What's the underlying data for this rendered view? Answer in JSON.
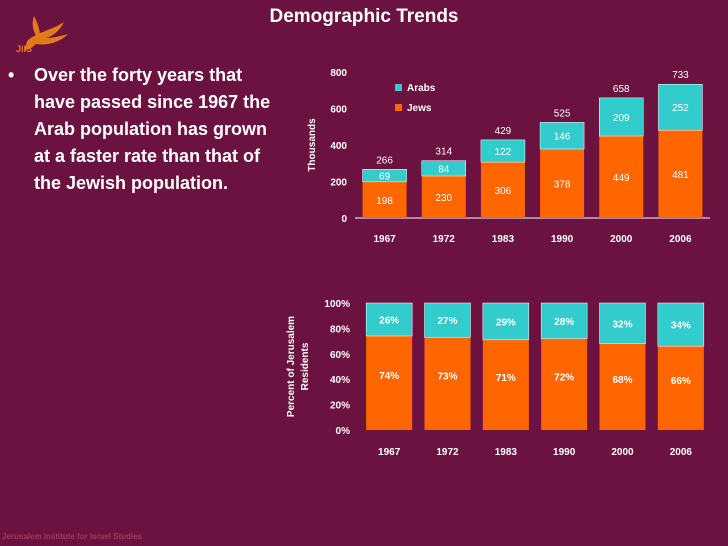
{
  "title": "Demographic Trends",
  "logo": {
    "text": "JIIS",
    "icon": "dove-icon",
    "color": "#e07a1a"
  },
  "bullet": {
    "marker": "•",
    "text": "Over the forty years that have passed since 1967 the Arab population has grown at a faster rate than that of the Jewish population."
  },
  "footer": "Jerusalem Institute for Israel Studies",
  "colors": {
    "background": "#6b1240",
    "arabs": "#33cccc",
    "jews": "#ff6600"
  },
  "chart_data": [
    {
      "type": "bar",
      "stacked": true,
      "categories": [
        "1967",
        "1972",
        "1983",
        "1990",
        "2000",
        "2006"
      ],
      "series": [
        {
          "name": "Jews",
          "values": [
            198,
            230,
            306,
            378,
            449,
            481
          ],
          "color": "#ff6600"
        },
        {
          "name": "Arabs",
          "values": [
            69,
            84,
            122,
            146,
            209,
            252
          ],
          "color": "#33cccc"
        }
      ],
      "totals": [
        266,
        314,
        429,
        525,
        658,
        733
      ],
      "ylabel": "Thousands",
      "ylim": [
        0,
        800
      ],
      "yticks": [
        0,
        200,
        400,
        600,
        800
      ],
      "ytick_labels": [
        "0",
        "200",
        "400",
        "600",
        "800"
      ],
      "legend": [
        "Arabs",
        "Jews"
      ],
      "legend_position": "top-left"
    },
    {
      "type": "bar",
      "stacked": true,
      "percent": true,
      "categories": [
        "1967",
        "1972",
        "1983",
        "1990",
        "2000",
        "2006"
      ],
      "series": [
        {
          "name": "Jews",
          "values": [
            74,
            73,
            71,
            72,
            68,
            66
          ],
          "labels": [
            "74%",
            "73%",
            "71%",
            "72%",
            "68%",
            "66%"
          ],
          "color": "#ff6600"
        },
        {
          "name": "Arabs",
          "values": [
            26,
            27,
            29,
            28,
            32,
            34
          ],
          "labels": [
            "26%",
            "27%",
            "29%",
            "28%",
            "32%",
            "34%"
          ],
          "color": "#33cccc"
        }
      ],
      "ylabel": "Percent of Jerusalem Residents",
      "ylabel_lines": [
        "Percent of Jerusalem",
        "Residents"
      ],
      "ylim": [
        0,
        100
      ],
      "yticks": [
        0,
        20,
        40,
        60,
        80,
        100
      ],
      "ytick_labels": [
        "0%",
        "20%",
        "40%",
        "60%",
        "80%",
        "100%"
      ]
    }
  ]
}
